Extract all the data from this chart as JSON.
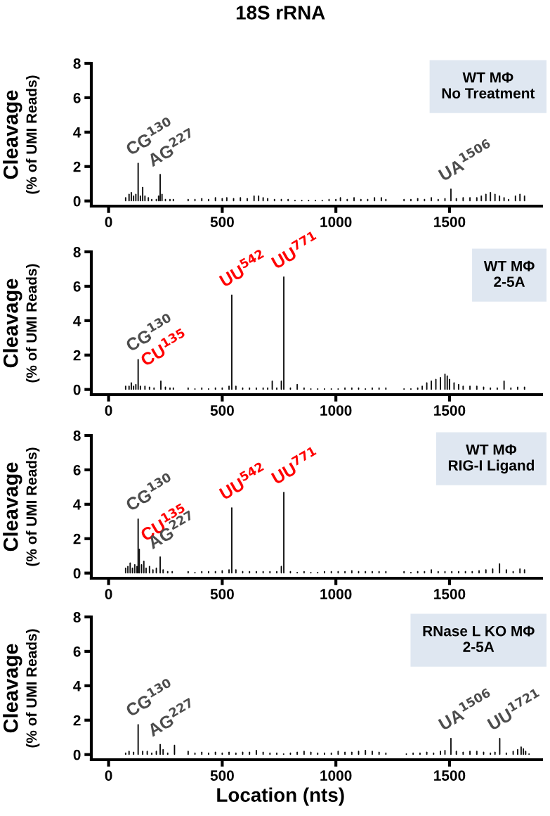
{
  "chart_data": [
    {
      "type": "bar",
      "title": "18S rRNA",
      "ylabel": "Cleavage\n(% of UMI Reads)",
      "color": "#000000",
      "x": [
        75,
        90,
        100,
        110,
        120,
        130,
        140,
        150,
        160,
        175,
        190,
        210,
        220,
        227,
        235,
        250,
        270,
        285,
        350,
        380,
        410,
        440,
        470,
        500,
        520,
        550,
        580,
        610,
        640,
        660,
        680,
        700,
        730,
        760,
        790,
        820,
        850,
        880,
        910,
        940,
        970,
        1000,
        1020,
        1050,
        1080,
        1110,
        1140,
        1170,
        1200,
        1220,
        1300,
        1330,
        1360,
        1390,
        1420,
        1450,
        1480,
        1506,
        1530,
        1560,
        1590,
        1620,
        1640,
        1660,
        1680,
        1700,
        1720,
        1740,
        1760,
        1790,
        1810,
        1830
      ],
      "values": [
        0.2,
        0.4,
        0.5,
        0.3,
        0.4,
        2.2,
        0.3,
        0.8,
        0.3,
        0.2,
        0.1,
        0.1,
        0.3,
        1.55,
        0.4,
        0.1,
        0.1,
        0.1,
        0.1,
        0.1,
        0.15,
        0.1,
        0.2,
        0.15,
        0.2,
        0.15,
        0.2,
        0.15,
        0.3,
        0.3,
        0.2,
        0.15,
        0.1,
        0.1,
        0.1,
        0.05,
        0.05,
        0.05,
        0.05,
        0.05,
        0.1,
        0.1,
        0.2,
        0.1,
        0.2,
        0.1,
        0.1,
        0.2,
        0.2,
        0.1,
        0.1,
        0.1,
        0.15,
        0.1,
        0.2,
        0.1,
        0.15,
        0.7,
        0.15,
        0.2,
        0.2,
        0.2,
        0.3,
        0.4,
        0.5,
        0.4,
        0.3,
        0.2,
        0.1,
        0.3,
        0.4,
        0.3
      ],
      "xlim": [
        -76,
        1905
      ],
      "xticks": [
        0,
        500,
        1000,
        1500
      ],
      "ylim": [
        -0.3,
        8
      ],
      "yticks": [
        0,
        2,
        4,
        6,
        8
      ],
      "grid": false,
      "annotations": [
        "WT MΦ\nNo Treatment",
        {
          "text": "CG$^{130}$",
          "x": 130,
          "y": 2.2
        },
        {
          "text": "AG$^{227}$",
          "x": 227,
          "y": 1.55
        },
        {
          "text": "UA$^{1506}$",
          "x": 1506,
          "y": 0.7
        }
      ]
    },
    {
      "type": "bar",
      "ylabel": "Cleavage\n(% of UMI Reads)",
      "color": "#000000",
      "x": [
        75,
        90,
        100,
        110,
        120,
        130,
        140,
        160,
        180,
        200,
        230,
        250,
        270,
        285,
        350,
        380,
        410,
        440,
        470,
        500,
        530,
        542,
        560,
        590,
        620,
        650,
        680,
        700,
        720,
        740,
        760,
        771,
        800,
        830,
        860,
        890,
        920,
        950,
        980,
        1010,
        1040,
        1070,
        1100,
        1130,
        1160,
        1190,
        1220,
        1300,
        1330,
        1360,
        1380,
        1400,
        1420,
        1440,
        1460,
        1480,
        1490,
        1500,
        1520,
        1540,
        1560,
        1590,
        1620,
        1650,
        1680,
        1710,
        1740,
        1770,
        1800,
        1830
      ],
      "values": [
        0.2,
        0.2,
        0.4,
        0.2,
        0.3,
        1.75,
        0.2,
        0.2,
        0.15,
        0.1,
        0.5,
        0.15,
        0.1,
        0.1,
        0.1,
        0.05,
        0.1,
        0.05,
        0.1,
        0.1,
        0.2,
        5.5,
        0.2,
        0.1,
        0.1,
        0.1,
        0.1,
        0.1,
        0.5,
        0.1,
        0.5,
        6.55,
        0.1,
        0.3,
        0.1,
        0.05,
        0.05,
        0.05,
        0.05,
        0.05,
        0.1,
        0.1,
        0.1,
        0.05,
        0.1,
        0.1,
        0.1,
        0.05,
        0.05,
        0.1,
        0.2,
        0.4,
        0.5,
        0.6,
        0.7,
        0.9,
        0.8,
        0.6,
        0.4,
        0.3,
        0.2,
        0.2,
        0.2,
        0.15,
        0.1,
        0.1,
        0.5,
        0.1,
        0.15,
        0.15
      ],
      "xlim": [
        -76,
        1905
      ],
      "xticks": [
        0,
        500,
        1000,
        1500
      ],
      "ylim": [
        -0.3,
        8
      ],
      "yticks": [
        0,
        2,
        4,
        6,
        8
      ],
      "grid": false,
      "annotations": [
        "WT MΦ\n2-5A",
        {
          "text": "CG$^{130}$",
          "x": 130,
          "y": 1.75
        },
        {
          "text": "CU$^{135}$",
          "x": 135,
          "y": 0.9
        },
        {
          "text": "UU$^{542}$",
          "x": 542,
          "y": 5.5
        },
        {
          "text": "UU$^{771}$",
          "x": 771,
          "y": 6.55
        }
      ]
    },
    {
      "type": "bar",
      "ylabel": "Cleavage\n(% of UMI Reads)",
      "color": "#000000",
      "x": [
        75,
        85,
        95,
        105,
        115,
        125,
        130,
        135,
        145,
        155,
        165,
        180,
        195,
        210,
        227,
        240,
        260,
        280,
        350,
        380,
        410,
        440,
        470,
        500,
        530,
        542,
        560,
        590,
        620,
        650,
        680,
        710,
        740,
        760,
        771,
        800,
        830,
        860,
        890,
        920,
        950,
        980,
        1010,
        1040,
        1070,
        1100,
        1130,
        1160,
        1190,
        1220,
        1300,
        1330,
        1360,
        1390,
        1420,
        1450,
        1480,
        1510,
        1540,
        1570,
        1600,
        1630,
        1660,
        1690,
        1720,
        1750,
        1780,
        1810,
        1830
      ],
      "values": [
        0.3,
        0.4,
        0.6,
        0.3,
        0.5,
        0.4,
        3.15,
        1.4,
        0.5,
        0.7,
        0.3,
        0.4,
        0.2,
        0.3,
        0.95,
        0.2,
        0.1,
        0.1,
        0.1,
        0.05,
        0.1,
        0.1,
        0.1,
        0.15,
        0.2,
        3.8,
        0.2,
        0.1,
        0.1,
        0.1,
        0.1,
        0.1,
        0.1,
        0.4,
        4.7,
        0.1,
        0.05,
        0.1,
        0.05,
        0.05,
        0.1,
        0.1,
        0.1,
        0.1,
        0.15,
        0.1,
        0.1,
        0.1,
        0.1,
        0.1,
        0.1,
        0.05,
        0.1,
        0.1,
        0.2,
        0.1,
        0.1,
        0.1,
        0.1,
        0.1,
        0.1,
        0.15,
        0.2,
        0.25,
        0.55,
        0.2,
        0.1,
        0.25,
        0.2
      ],
      "xlim": [
        -76,
        1905
      ],
      "xticks": [
        0,
        500,
        1000,
        1500
      ],
      "ylim": [
        -0.3,
        8
      ],
      "yticks": [
        0,
        2,
        4,
        6,
        8
      ],
      "grid": false,
      "annotations": [
        "WT MΦ\nRIG-I Ligand",
        {
          "text": "CG$^{130}$",
          "x": 130,
          "y": 3.15
        },
        {
          "text": "CU$^{135}$",
          "x": 135,
          "y": 1.4
        },
        {
          "text": "AG$^{227}$",
          "x": 227,
          "y": 0.95
        },
        {
          "text": "UU$^{542}$",
          "x": 542,
          "y": 3.8
        },
        {
          "text": "UU$^{771}$",
          "x": 771,
          "y": 4.7
        }
      ]
    },
    {
      "type": "bar",
      "ylabel": "Cleavage\n(% of UMI Reads)",
      "xlabel": "Location (nts)",
      "color": "#000000",
      "x": [
        75,
        90,
        110,
        130,
        150,
        170,
        190,
        210,
        227,
        240,
        260,
        290,
        350,
        380,
        410,
        440,
        470,
        500,
        530,
        560,
        590,
        620,
        650,
        680,
        710,
        740,
        770,
        800,
        830,
        860,
        890,
        920,
        950,
        980,
        1010,
        1040,
        1070,
        1100,
        1130,
        1160,
        1190,
        1220,
        1310,
        1340,
        1370,
        1400,
        1430,
        1460,
        1480,
        1506,
        1530,
        1560,
        1590,
        1620,
        1650,
        1680,
        1700,
        1721,
        1750,
        1780,
        1800,
        1815,
        1825,
        1835,
        1850
      ],
      "values": [
        0.1,
        0.2,
        0.15,
        1.75,
        0.2,
        0.2,
        0.1,
        0.2,
        0.6,
        0.3,
        0.1,
        0.55,
        0.2,
        0.1,
        0.15,
        0.1,
        0.15,
        0.1,
        0.15,
        0.1,
        0.15,
        0.15,
        0.25,
        0.15,
        0.1,
        0.1,
        0.05,
        0.1,
        0.15,
        0.2,
        0.15,
        0.1,
        0.1,
        0.1,
        0.2,
        0.15,
        0.15,
        0.2,
        0.25,
        0.2,
        0.15,
        0.1,
        0.05,
        0.1,
        0.1,
        0.15,
        0.1,
        0.2,
        0.25,
        0.95,
        0.2,
        0.15,
        0.2,
        0.2,
        0.15,
        0.1,
        0.15,
        0.95,
        0.1,
        0.2,
        0.3,
        0.45,
        0.35,
        0.2,
        0.05
      ],
      "xlim": [
        -76,
        1905
      ],
      "xticks": [
        0,
        500,
        1000,
        1500
      ],
      "ylim": [
        -0.3,
        8
      ],
      "yticks": [
        0,
        2,
        4,
        6,
        8
      ],
      "grid": false,
      "annotations": [
        "RNase L KO MΦ\n2-5A",
        {
          "text": "CG$^{130}$",
          "x": 130,
          "y": 1.75
        },
        {
          "text": "AG$^{227}$",
          "x": 227,
          "y": 0.6
        },
        {
          "text": "UA$^{1506}$",
          "x": 1506,
          "y": 0.95
        },
        {
          "text": "UU$^{1721}$",
          "x": 1721,
          "y": 0.95
        }
      ]
    }
  ]
}
